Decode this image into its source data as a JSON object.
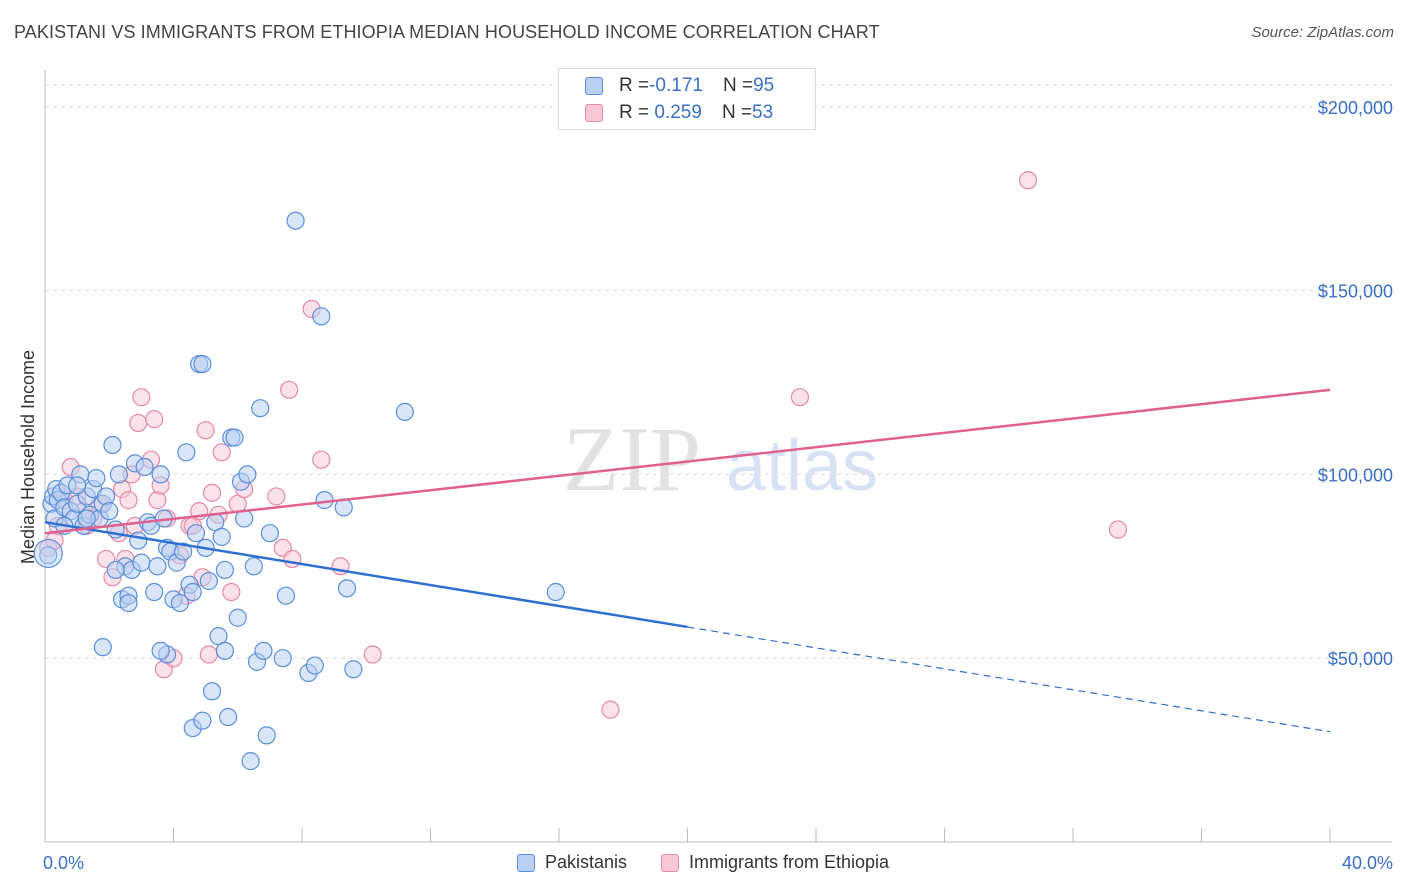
{
  "title": "PAKISTANI VS IMMIGRANTS FROM ETHIOPIA MEDIAN HOUSEHOLD INCOME CORRELATION CHART",
  "source": "Source: ZipAtlas.com",
  "watermark_zip": "ZIP",
  "watermark_atlas": "atlas",
  "colors": {
    "blue": "#5b8fd9",
    "blue_fill": "#b9d0f3",
    "blue_line": "#2f6fcf",
    "pink": "#e48aa8",
    "pink_fill": "#f8c8d7",
    "pink_line": "#e06090",
    "axis_text": "#3a6fc4",
    "grid": "#dddddd"
  },
  "stats_box": {
    "rows": [
      {
        "r_label": "R = ",
        "r_value": "-0.171",
        "n_label": "N = ",
        "n_value": "95"
      },
      {
        "r_label": "R = ",
        "r_value": " 0.259",
        "n_label": "N = ",
        "n_value": "53"
      }
    ]
  },
  "legend": {
    "pakistanis": "Pakistanis",
    "ethiopia": "Immigrants from Ethiopia"
  },
  "chart_data": {
    "type": "scatter",
    "title": "PAKISTANI VS IMMIGRANTS FROM ETHIOPIA MEDIAN HOUSEHOLD INCOME CORRELATION CHART",
    "xlabel": "",
    "ylabel": "Median Household Income",
    "xlim": [
      0,
      40
    ],
    "ylim": [
      0,
      210000
    ],
    "x_tick_labels": [
      "0.0%",
      "40.0%"
    ],
    "y_ticks": [
      50000,
      100000,
      150000,
      200000
    ],
    "y_tick_labels": [
      "$50,000",
      "$100,000",
      "$150,000",
      "$200,000"
    ],
    "grid": "horizontal dashed",
    "legend_position": "bottom",
    "series": [
      {
        "name": "Pakistanis",
        "r": -0.171,
        "n": 95,
        "trend": {
          "x0": 0,
          "y0": 87000,
          "x_solid_end": 20,
          "y_solid_end": 58500,
          "x1": 40,
          "y1": 30000
        },
        "points": [
          [
            0.1,
            78000
          ],
          [
            0.2,
            92000
          ],
          [
            0.25,
            94000
          ],
          [
            0.3,
            88000
          ],
          [
            0.35,
            96000
          ],
          [
            0.4,
            93000
          ],
          [
            0.5,
            95000
          ],
          [
            0.6,
            91000
          ],
          [
            0.7,
            97000
          ],
          [
            0.8,
            90000
          ],
          [
            0.9,
            88000
          ],
          [
            1.0,
            92000
          ],
          [
            1.1,
            100000
          ],
          [
            1.2,
            86000
          ],
          [
            1.3,
            94000
          ],
          [
            1.4,
            89000
          ],
          [
            1.5,
            96000
          ],
          [
            1.6,
            99000
          ],
          [
            1.7,
            88000
          ],
          [
            1.8,
            92000
          ],
          [
            1.9,
            94000
          ],
          [
            2.0,
            90000
          ],
          [
            2.1,
            108000
          ],
          [
            2.2,
            85000
          ],
          [
            2.3,
            100000
          ],
          [
            2.4,
            66000
          ],
          [
            2.5,
            75000
          ],
          [
            2.6,
            67000
          ],
          [
            2.7,
            74000
          ],
          [
            2.8,
            103000
          ],
          [
            2.9,
            82000
          ],
          [
            3.0,
            76000
          ],
          [
            3.1,
            102000
          ],
          [
            3.2,
            87000
          ],
          [
            3.3,
            86000
          ],
          [
            3.4,
            68000
          ],
          [
            3.5,
            75000
          ],
          [
            3.6,
            100000
          ],
          [
            3.7,
            88000
          ],
          [
            3.8,
            80000
          ],
          [
            3.9,
            79000
          ],
          [
            4.0,
            66000
          ],
          [
            4.1,
            76000
          ],
          [
            4.2,
            65000
          ],
          [
            4.3,
            79000
          ],
          [
            4.4,
            106000
          ],
          [
            4.5,
            70000
          ],
          [
            4.6,
            68000
          ],
          [
            4.7,
            84000
          ],
          [
            4.8,
            130000
          ],
          [
            4.9,
            130000
          ],
          [
            5.0,
            80000
          ],
          [
            5.1,
            71000
          ],
          [
            5.2,
            41000
          ],
          [
            5.3,
            87000
          ],
          [
            5.4,
            56000
          ],
          [
            5.5,
            83000
          ],
          [
            5.6,
            52000
          ],
          [
            5.7,
            34000
          ],
          [
            5.8,
            110000
          ],
          [
            5.9,
            110000
          ],
          [
            6.0,
            61000
          ],
          [
            6.1,
            98000
          ],
          [
            6.2,
            88000
          ],
          [
            6.3,
            100000
          ],
          [
            6.4,
            22000
          ],
          [
            6.5,
            75000
          ],
          [
            6.6,
            49000
          ],
          [
            6.7,
            118000
          ],
          [
            6.8,
            52000
          ],
          [
            6.9,
            29000
          ],
          [
            7.0,
            84000
          ],
          [
            7.4,
            50000
          ],
          [
            7.5,
            67000
          ],
          [
            7.8,
            169000
          ],
          [
            8.2,
            46000
          ],
          [
            8.4,
            48000
          ],
          [
            8.6,
            143000
          ],
          [
            8.7,
            93000
          ],
          [
            9.3,
            91000
          ],
          [
            9.4,
            69000
          ],
          [
            9.6,
            47000
          ],
          [
            11.2,
            117000
          ],
          [
            15.9,
            68000
          ],
          [
            3.8,
            51000
          ],
          [
            1.8,
            53000
          ],
          [
            3.6,
            52000
          ],
          [
            2.6,
            65000
          ],
          [
            0.6,
            86000
          ],
          [
            1.0,
            97000
          ],
          [
            4.6,
            31000
          ],
          [
            4.9,
            33000
          ],
          [
            1.3,
            88000
          ],
          [
            2.2,
            74000
          ],
          [
            5.6,
            74000
          ]
        ]
      },
      {
        "name": "Immigrants from Ethiopia",
        "r": 0.259,
        "n": 53,
        "trend": {
          "x0": 0,
          "y0": 84000,
          "x1": 40,
          "y1": 123000
        },
        "points": [
          [
            0.1,
            80000
          ],
          [
            0.3,
            82000
          ],
          [
            0.4,
            86000
          ],
          [
            0.6,
            93000
          ],
          [
            0.8,
            102000
          ],
          [
            1.0,
            94000
          ],
          [
            1.2,
            90000
          ],
          [
            1.3,
            86000
          ],
          [
            1.5,
            88000
          ],
          [
            1.7,
            92000
          ],
          [
            1.9,
            77000
          ],
          [
            2.1,
            72000
          ],
          [
            2.3,
            84000
          ],
          [
            2.4,
            96000
          ],
          [
            2.5,
            77000
          ],
          [
            2.6,
            93000
          ],
          [
            2.7,
            100000
          ],
          [
            2.8,
            86000
          ],
          [
            2.9,
            114000
          ],
          [
            3.0,
            121000
          ],
          [
            3.3,
            104000
          ],
          [
            3.4,
            115000
          ],
          [
            3.5,
            93000
          ],
          [
            3.6,
            97000
          ],
          [
            3.7,
            47000
          ],
          [
            3.8,
            88000
          ],
          [
            4.0,
            50000
          ],
          [
            4.2,
            78000
          ],
          [
            4.4,
            67000
          ],
          [
            4.5,
            86000
          ],
          [
            4.6,
            86000
          ],
          [
            4.8,
            90000
          ],
          [
            4.9,
            72000
          ],
          [
            5.0,
            112000
          ],
          [
            5.1,
            51000
          ],
          [
            5.2,
            95000
          ],
          [
            5.4,
            89000
          ],
          [
            5.5,
            106000
          ],
          [
            5.8,
            68000
          ],
          [
            6.0,
            92000
          ],
          [
            6.2,
            96000
          ],
          [
            7.2,
            94000
          ],
          [
            7.4,
            80000
          ],
          [
            7.6,
            123000
          ],
          [
            7.7,
            77000
          ],
          [
            8.3,
            145000
          ],
          [
            8.6,
            104000
          ],
          [
            9.2,
            75000
          ],
          [
            10.2,
            51000
          ],
          [
            17.6,
            36000
          ],
          [
            23.5,
            121000
          ],
          [
            30.6,
            180000
          ],
          [
            33.4,
            85000
          ]
        ]
      }
    ]
  }
}
